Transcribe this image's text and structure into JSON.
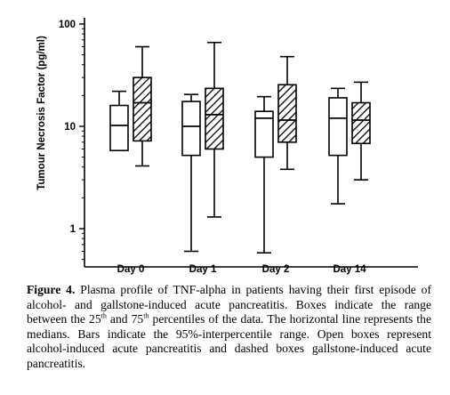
{
  "chart_data": {
    "type": "box",
    "scale": "log",
    "ylabel": "Tumour Necrosis Factor (pg/ml)",
    "ylim": [
      0.5,
      100
    ],
    "yticks": [
      {
        "value": 1,
        "label": "1"
      },
      {
        "value": 10,
        "label": "10"
      },
      {
        "value": 100,
        "label": "100"
      }
    ],
    "categories": [
      "Day 0",
      "Day 1",
      "Day 2",
      "Day 14"
    ],
    "series": [
      {
        "style": "open",
        "boxes": [
          {
            "whisker_low": 5.8,
            "q1": 5.8,
            "median": 10.2,
            "q3": 16.0,
            "whisker_high": 22.0
          },
          {
            "whisker_low": 0.6,
            "q1": 5.2,
            "median": 10.0,
            "q3": 17.5,
            "whisker_high": 20.5
          },
          {
            "whisker_low": 0.58,
            "q1": 5.0,
            "median": 12.0,
            "q3": 14.0,
            "whisker_high": 19.5
          },
          {
            "whisker_low": 1.75,
            "q1": 5.2,
            "median": 12.0,
            "q3": 19.0,
            "whisker_high": 23.5
          }
        ]
      },
      {
        "style": "hatched",
        "boxes": [
          {
            "whisker_low": 4.1,
            "q1": 7.2,
            "median": 17.0,
            "q3": 30.0,
            "whisker_high": 60.0
          },
          {
            "whisker_low": 1.3,
            "q1": 6.0,
            "median": 13.0,
            "q3": 23.5,
            "whisker_high": 66.0
          },
          {
            "whisker_low": 3.8,
            "q1": 7.0,
            "median": 11.5,
            "q3": 25.5,
            "whisker_high": 48.0
          },
          {
            "whisker_low": 3.0,
            "q1": 6.8,
            "median": 11.5,
            "q3": 17.0,
            "whisker_high": 27.0
          }
        ]
      }
    ]
  },
  "caption": {
    "label": "Figure 4.",
    "part1": " Plasma profile of TNF-alpha in patients having their first episode of alcohol- and gallstone-induced acute pancreatitis. Boxes indicate the range between the 25",
    "sup1": "th",
    "part2": " and 75",
    "sup2": "th",
    "part3": " percentiles of the data. The horizontal line represents the medians. Bars indicate the 95%-interpercentile range. Open boxes represent alcohol-induced acute pancreatitis and dashed boxes gallstone-induced acute pancreatitis."
  }
}
